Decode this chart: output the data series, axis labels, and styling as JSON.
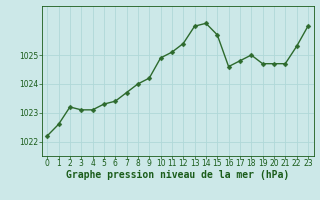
{
  "x": [
    0,
    1,
    2,
    3,
    4,
    5,
    6,
    7,
    8,
    9,
    10,
    11,
    12,
    13,
    14,
    15,
    16,
    17,
    18,
    19,
    20,
    21,
    22,
    23
  ],
  "y": [
    1022.2,
    1022.6,
    1023.2,
    1023.1,
    1023.1,
    1023.3,
    1023.4,
    1023.7,
    1024.0,
    1024.2,
    1024.9,
    1025.1,
    1025.4,
    1026.0,
    1026.1,
    1025.7,
    1024.6,
    1024.8,
    1025.0,
    1024.7,
    1024.7,
    1024.7,
    1025.3,
    1026.0
  ],
  "line_color": "#2d6a2d",
  "marker_color": "#2d6a2d",
  "bg_color": "#cce8e8",
  "grid_color": "#b0d8d8",
  "axis_label_color": "#1a5c1a",
  "tick_label_color": "#1a5c1a",
  "xlabel": "Graphe pression niveau de la mer (hPa)",
  "ylim": [
    1021.5,
    1026.7
  ],
  "yticks": [
    1022,
    1023,
    1024,
    1025
  ],
  "xticks": [
    0,
    1,
    2,
    3,
    4,
    5,
    6,
    7,
    8,
    9,
    10,
    11,
    12,
    13,
    14,
    15,
    16,
    17,
    18,
    19,
    20,
    21,
    22,
    23
  ],
  "marker_size": 2.5,
  "line_width": 1.0,
  "xlabel_fontsize": 7.0,
  "tick_fontsize": 5.5,
  "fig_width": 3.2,
  "fig_height": 2.0,
  "dpi": 100
}
